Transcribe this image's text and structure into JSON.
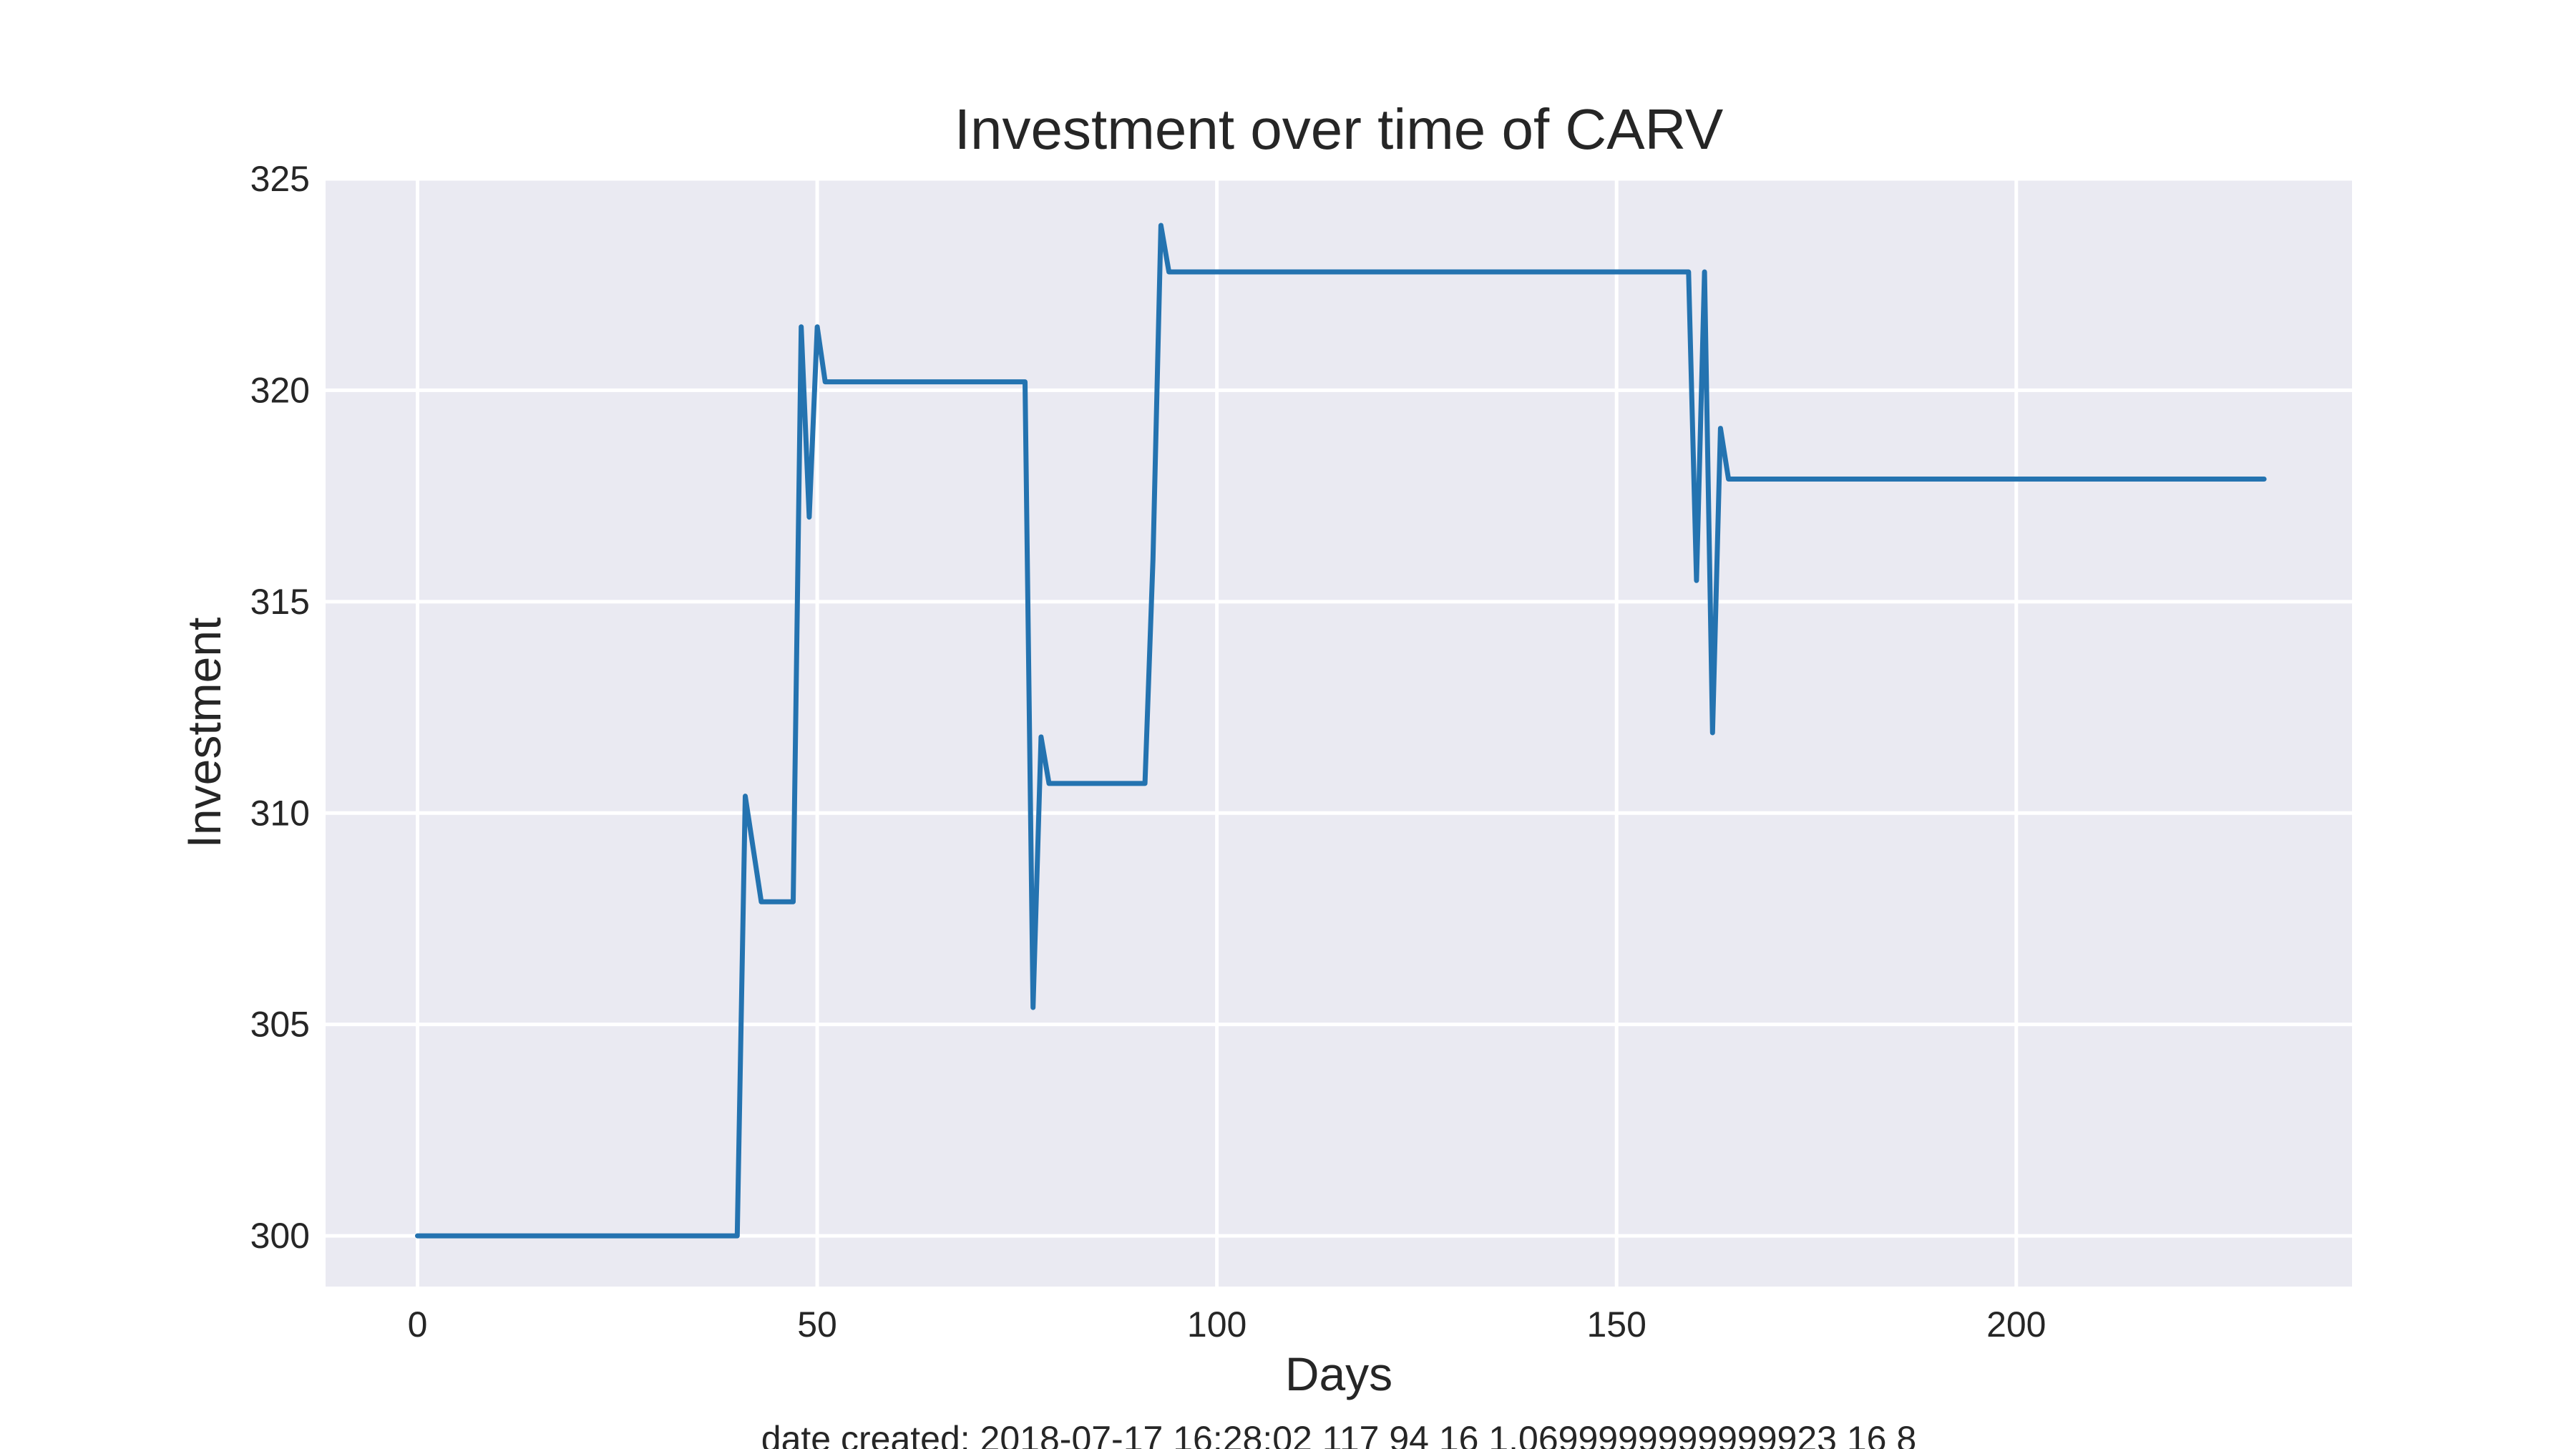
{
  "chart_data": {
    "type": "line",
    "title": "Investment over time of CARV",
    "xlabel": "Days",
    "ylabel": "Investment",
    "footnote": "date created: 2018-07-17 16:28:02 117 94 16 1.0699999999999923 16 8",
    "xlim": [
      -11.5,
      242
    ],
    "ylim": [
      298.8,
      325
    ],
    "xticks": [
      0,
      50,
      100,
      150,
      200
    ],
    "yticks": [
      300,
      305,
      310,
      315,
      320,
      325
    ],
    "grid": true,
    "background": "#eaeaf2",
    "series": [
      {
        "color": "#2473b0",
        "x": [
          0,
          40,
          41,
          43,
          47,
          48,
          49,
          50,
          51,
          76,
          77,
          78,
          79,
          91,
          92,
          93,
          94,
          159,
          160,
          161,
          162,
          163,
          164,
          231
        ],
        "y": [
          300,
          300,
          310.4,
          307.9,
          307.9,
          321.5,
          317.0,
          321.5,
          320.2,
          320.2,
          305.4,
          311.8,
          310.7,
          310.7,
          316.0,
          323.9,
          322.8,
          322.8,
          315.5,
          322.8,
          311.9,
          319.1,
          317.9,
          317.9
        ]
      }
    ]
  }
}
